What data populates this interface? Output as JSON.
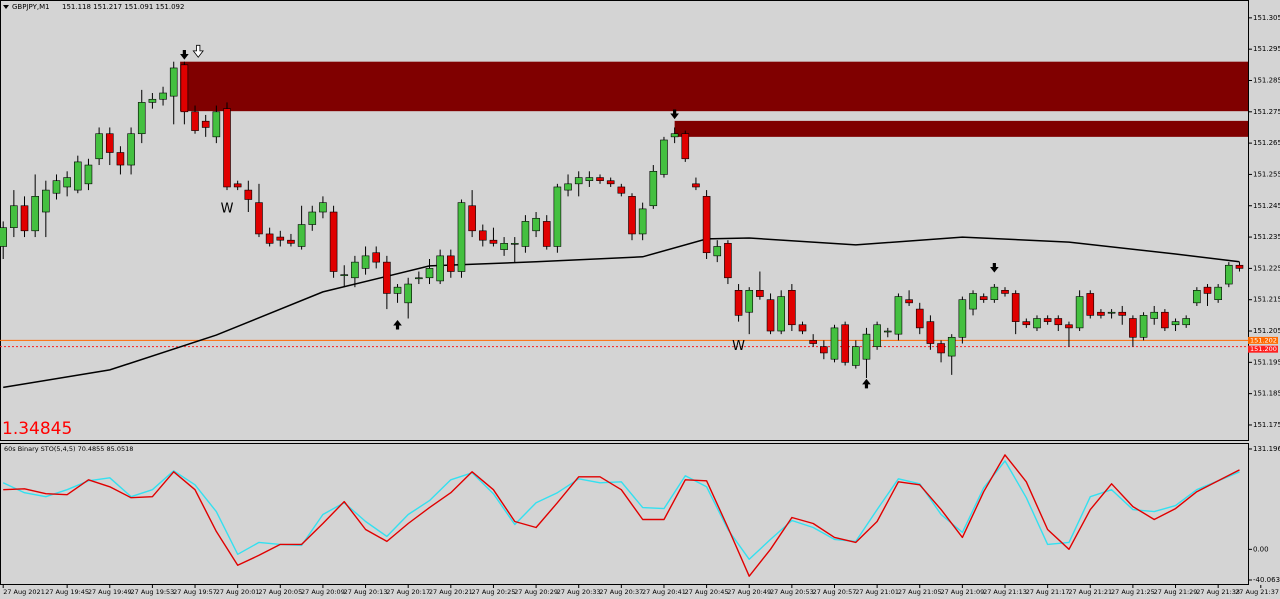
{
  "chart_data": [
    {
      "type": "candlestick",
      "title": "GBPJPY,M1",
      "subtitle": "151.118 151.217 151.091 151.092",
      "info_text": "1.34845",
      "up_color": "#44c040",
      "down_color": "#e00000",
      "ma_color": "#000000",
      "zone_color": "#800000",
      "x": [
        0,
        1,
        2,
        3,
        4,
        5,
        6,
        7,
        8,
        9,
        10,
        11,
        12,
        13,
        14,
        15,
        16,
        17,
        18,
        19,
        20,
        21,
        22,
        23,
        24,
        25,
        26,
        27,
        28,
        29,
        30,
        31,
        32,
        33,
        34,
        35,
        36,
        37,
        38,
        39,
        40,
        41,
        42,
        43,
        44,
        45,
        46,
        47,
        48,
        49,
        50,
        51,
        52,
        53,
        54,
        55,
        56,
        57,
        58,
        59,
        60,
        61,
        62,
        63,
        64,
        65,
        66,
        67,
        68,
        69,
        70,
        71,
        72,
        73,
        74,
        75,
        76,
        77,
        78,
        79,
        80,
        81,
        82,
        83,
        84,
        85,
        86,
        87,
        88,
        89,
        90,
        91,
        92,
        93,
        94,
        95,
        96,
        97,
        98,
        99,
        100,
        101,
        102,
        103,
        104,
        105,
        106,
        107,
        108,
        109,
        110,
        111,
        112,
        113,
        114,
        115,
        116
      ],
      "open": [
        151.232,
        151.238,
        151.245,
        151.237,
        151.243,
        151.249,
        151.251,
        151.25,
        151.252,
        151.26,
        151.268,
        151.262,
        151.258,
        151.268,
        151.278,
        151.279,
        151.28,
        151.29,
        151.275,
        151.272,
        151.267,
        151.276,
        151.252,
        151.25,
        151.246,
        151.236,
        151.235,
        151.234,
        151.232,
        151.239,
        151.243,
        151.243,
        151.223,
        151.222,
        151.225,
        151.23,
        151.227,
        151.217,
        151.214,
        151.222,
        151.222,
        151.221,
        151.229,
        151.224,
        151.245,
        151.237,
        151.234,
        151.231,
        151.233,
        151.232,
        151.237,
        151.24,
        151.232,
        151.25,
        151.252,
        151.253,
        151.254,
        151.253,
        151.251,
        151.248,
        151.236,
        151.245,
        151.255,
        151.267,
        151.268,
        151.252,
        151.248,
        151.229,
        151.233,
        151.218,
        151.211,
        151.218,
        151.215,
        151.205,
        151.218,
        151.207,
        151.202,
        151.2,
        151.196,
        151.207,
        151.194,
        151.196,
        151.2,
        151.205,
        151.204,
        151.215,
        151.212,
        151.208,
        151.201,
        151.197,
        151.203,
        151.212,
        151.216,
        151.215,
        151.218,
        151.217,
        151.208,
        151.206,
        151.209,
        151.209,
        151.207,
        151.206,
        151.217,
        151.211,
        151.211,
        151.211,
        151.209,
        151.203,
        151.209,
        151.211,
        151.207,
        151.207,
        151.214,
        151.219,
        151.215,
        151.22,
        151.226
      ],
      "high": [
        151.24,
        151.25,
        151.248,
        151.255,
        151.253,
        151.255,
        151.256,
        151.261,
        151.26,
        151.27,
        151.27,
        151.264,
        151.27,
        151.282,
        151.281,
        151.283,
        151.291,
        151.291,
        151.277,
        151.274,
        151.277,
        151.278,
        151.253,
        151.253,
        151.252,
        151.238,
        151.237,
        151.236,
        151.245,
        151.245,
        151.248,
        151.245,
        151.226,
        151.229,
        151.232,
        151.232,
        151.229,
        151.22,
        151.222,
        151.224,
        151.228,
        151.231,
        151.231,
        151.247,
        151.25,
        151.239,
        151.238,
        151.235,
        151.235,
        151.242,
        151.243,
        151.242,
        151.252,
        151.255,
        151.256,
        151.256,
        151.255,
        151.254,
        151.252,
        151.249,
        151.246,
        151.258,
        151.267,
        151.27,
        151.269,
        151.254,
        151.25,
        151.234,
        151.234,
        151.22,
        151.219,
        151.224,
        151.217,
        151.218,
        151.22,
        151.208,
        151.204,
        151.202,
        151.207,
        151.208,
        151.202,
        151.206,
        151.208,
        151.206,
        151.217,
        151.218,
        151.214,
        151.21,
        151.202,
        151.204,
        151.216,
        151.218,
        151.217,
        151.22,
        151.219,
        151.218,
        151.209,
        151.21,
        151.21,
        151.21,
        151.208,
        151.218,
        151.218,
        151.212,
        151.212,
        151.213,
        151.21,
        151.211,
        151.213,
        151.212,
        151.209,
        151.21,
        151.219,
        151.22,
        151.22,
        151.227,
        151.227
      ],
      "low": [
        151.228,
        151.235,
        151.235,
        151.235,
        151.235,
        151.247,
        151.248,
        151.249,
        151.25,
        151.258,
        151.258,
        151.255,
        151.255,
        151.265,
        151.276,
        151.277,
        151.271,
        151.271,
        151.268,
        151.267,
        151.265,
        151.25,
        151.25,
        151.243,
        151.235,
        151.232,
        151.232,
        151.232,
        151.231,
        151.237,
        151.241,
        151.222,
        151.219,
        151.219,
        151.223,
        151.225,
        151.212,
        151.214,
        151.209,
        151.22,
        151.22,
        151.22,
        151.222,
        151.222,
        151.235,
        151.232,
        151.232,
        151.229,
        151.227,
        151.23,
        151.235,
        151.231,
        151.23,
        151.248,
        151.248,
        151.251,
        151.252,
        151.251,
        151.248,
        151.234,
        151.234,
        151.244,
        151.254,
        151.265,
        151.259,
        151.25,
        151.228,
        151.227,
        151.22,
        151.208,
        151.204,
        151.215,
        151.204,
        151.204,
        151.205,
        151.204,
        151.2,
        151.196,
        151.195,
        151.194,
        151.193,
        151.19,
        151.199,
        151.203,
        151.202,
        151.213,
        151.204,
        151.199,
        151.195,
        151.191,
        151.201,
        151.21,
        151.214,
        151.214,
        151.216,
        151.204,
        151.206,
        151.205,
        151.207,
        151.205,
        151.2,
        151.205,
        151.209,
        151.209,
        151.209,
        151.207,
        151.2,
        151.202,
        151.207,
        151.205,
        151.205,
        151.206,
        151.213,
        151.213,
        151.214,
        151.219,
        151.224
      ],
      "close": [
        151.238,
        151.245,
        151.237,
        151.248,
        151.25,
        151.253,
        151.254,
        151.259,
        151.258,
        151.268,
        151.262,
        151.258,
        151.268,
        151.278,
        151.279,
        151.281,
        151.289,
        151.275,
        151.269,
        151.27,
        151.275,
        151.251,
        151.251,
        151.247,
        151.236,
        151.233,
        151.234,
        151.233,
        151.239,
        151.243,
        151.246,
        151.224,
        151.223,
        151.227,
        151.229,
        151.227,
        151.217,
        151.219,
        151.22,
        151.222,
        151.225,
        151.229,
        151.224,
        151.246,
        151.237,
        151.234,
        151.233,
        151.233,
        151.233,
        151.24,
        151.241,
        151.232,
        151.251,
        151.252,
        151.254,
        151.254,
        151.253,
        151.252,
        151.249,
        151.236,
        151.244,
        151.256,
        151.266,
        151.268,
        151.26,
        151.251,
        151.23,
        151.232,
        151.222,
        151.21,
        151.218,
        151.216,
        151.205,
        151.216,
        151.207,
        151.205,
        151.201,
        151.198,
        151.206,
        151.195,
        151.2,
        151.204,
        151.207,
        151.205,
        151.216,
        151.214,
        151.206,
        151.201,
        151.198,
        151.203,
        151.215,
        151.217,
        151.215,
        151.219,
        151.217,
        151.208,
        151.207,
        151.209,
        151.208,
        151.207,
        151.206,
        151.216,
        151.21,
        151.21,
        151.211,
        151.21,
        151.203,
        151.21,
        151.211,
        151.206,
        151.208,
        151.209,
        151.218,
        151.217,
        151.219,
        151.226,
        151.225
      ],
      "ma": {
        "x": [
          0,
          10,
          20,
          30,
          40,
          50,
          60,
          66,
          70,
          80,
          90,
          100,
          110,
          116
        ],
        "values": [
          151.187,
          151.1926,
          151.2037,
          151.2175,
          151.2258,
          151.2271,
          151.2287,
          151.2344,
          151.2347,
          151.2325,
          151.235,
          151.2334,
          151.2296,
          151.2271
        ]
      },
      "zones": [
        {
          "x_start": 16.6,
          "top": 151.291,
          "bottom": 151.2752
        },
        {
          "x_start": 63.0,
          "top": 151.2721,
          "bottom": 151.267
        }
      ],
      "hlines": [
        {
          "value": 151.202,
          "label": "151.202",
          "color": "#ff6a00",
          "style": "solid"
        },
        {
          "value": 151.2,
          "label": "151.200",
          "color": "#ff2020",
          "style": "dotted"
        }
      ],
      "signals": [
        {
          "x": 17,
          "y": 151.293,
          "direction": "down",
          "style": "solid"
        },
        {
          "x": 18.3,
          "y": 151.294,
          "direction": "down",
          "style": "hollow"
        },
        {
          "x": 63,
          "y": 151.274,
          "direction": "down",
          "style": "solid"
        },
        {
          "x": 93,
          "y": 151.225,
          "direction": "down",
          "style": "solid"
        },
        {
          "x": 37,
          "y": 151.2072,
          "direction": "up",
          "style": "solid"
        },
        {
          "x": 81,
          "y": 151.1884,
          "direction": "up",
          "style": "solid"
        }
      ],
      "annotations": [
        {
          "text": "W",
          "x": 21,
          "y": 151.244
        },
        {
          "text": "W",
          "x": 69,
          "y": 151.2
        }
      ],
      "xlim": [
        -0.3,
        116.8
      ],
      "ylim": [
        151.1702,
        151.3107
      ],
      "yticks": [
        151.305,
        151.295,
        151.285,
        151.275,
        151.265,
        151.255,
        151.245,
        151.235,
        151.225,
        151.215,
        151.205,
        151.195,
        151.185,
        151.175
      ],
      "xticks": [
        {
          "value": 0,
          "label": "27 Aug 2021"
        },
        {
          "value": 6,
          "label": "27 Aug 19:45"
        },
        {
          "value": 10,
          "label": "27 Aug 19:49"
        },
        {
          "value": 14,
          "label": "27 Aug 19:53"
        },
        {
          "value": 18,
          "label": "27 Aug 19:57"
        },
        {
          "value": 22,
          "label": "27 Aug 20:01"
        },
        {
          "value": 26,
          "label": "27 Aug 20:05"
        },
        {
          "value": 30,
          "label": "27 Aug 20:09"
        },
        {
          "value": 34,
          "label": "27 Aug 20:13"
        },
        {
          "value": 38,
          "label": "27 Aug 20:17"
        },
        {
          "value": 42,
          "label": "27 Aug 20:21"
        },
        {
          "value": 46,
          "label": "27 Aug 20:25"
        },
        {
          "value": 50,
          "label": "27 Aug 20:29"
        },
        {
          "value": 54,
          "label": "27 Aug 20:33"
        },
        {
          "value": 58,
          "label": "27 Aug 20:37"
        },
        {
          "value": 62,
          "label": "27 Aug 20:41"
        },
        {
          "value": 66,
          "label": "27 Aug 20:45"
        },
        {
          "value": 70,
          "label": "27 Aug 20:49"
        },
        {
          "value": 74,
          "label": "27 Aug 20:53"
        },
        {
          "value": 78,
          "label": "27 Aug 20:57"
        },
        {
          "value": 82,
          "label": "27 Aug 21:01"
        },
        {
          "value": 86,
          "label": "27 Aug 21:05"
        },
        {
          "value": 90,
          "label": "27 Aug 21:09"
        },
        {
          "value": 94,
          "label": "27 Aug 21:13"
        },
        {
          "value": 98,
          "label": "27 Aug 21:17"
        },
        {
          "value": 102,
          "label": "27 Aug 21:21"
        },
        {
          "value": 106,
          "label": "27 Aug 21:25"
        },
        {
          "value": 110,
          "label": "27 Aug 21:29"
        },
        {
          "value": 114,
          "label": "27 Aug 21:33"
        },
        {
          "value": 118,
          "label": "27 Aug 21:37"
        }
      ]
    },
    {
      "type": "line",
      "title": "60s Binary STO(5,4,5) 70.4855 85.0518",
      "x": [
        0,
        2,
        4,
        6,
        8,
        10,
        12,
        14,
        16,
        18,
        20,
        22,
        24,
        26,
        28,
        30,
        32,
        34,
        36,
        38,
        40,
        42,
        44,
        46,
        48,
        50,
        52,
        54,
        56,
        58,
        60,
        62,
        64,
        66,
        68,
        70,
        72,
        74,
        76,
        78,
        80,
        82,
        84,
        86,
        88,
        90,
        92,
        94,
        96,
        98,
        100,
        102,
        104,
        106,
        108,
        110,
        112,
        114,
        116
      ],
      "series": [
        {
          "color": "#33e0f0",
          "values": [
            87,
            74,
            68.8,
            77.9,
            89.6,
            93.5,
            68.8,
            77.9,
            102.6,
            84.4,
            49.4,
            -6.5,
            9.1,
            6.5,
            5.2,
            45.5,
            61,
            36.4,
            16.9,
            45.5,
            63.7,
            90.9,
            100,
            72.7,
            32.5,
            61,
            74,
            92.2,
            87,
            88.3,
            54.6,
            53.3,
            96.1,
            81.8,
            26,
            -13,
            13,
            37.7,
            28.6,
            13,
            10.4,
            52,
            92.2,
            85.7,
            45.5,
            22.1,
            80.5,
            115.6,
            67.5,
            6.5,
            9.1,
            68.8,
            77.9,
            52,
            49.4,
            57.2,
            77.9,
            89.6,
            101.3
          ]
        },
        {
          "color": "#e00000",
          "values": [
            77.9,
            79.2,
            72.7,
            71.4,
            90.9,
            81.8,
            67.5,
            68.8,
            101.3,
            77.9,
            23.4,
            -20.8,
            -7.8,
            6.5,
            6.5,
            33.8,
            62.4,
            26,
            10.4,
            33.8,
            54.6,
            74,
            101.3,
            77.9,
            36.4,
            28.6,
            61,
            94.8,
            94.8,
            77.9,
            39,
            39,
            90.9,
            89.6,
            28.6,
            -35.1,
            0,
            41.6,
            33.8,
            15.6,
            9.1,
            36.4,
            88.3,
            84.4,
            52,
            15.6,
            75.3,
            123.4,
            88.3,
            26,
            0,
            52,
            85.7,
            55.9,
            39,
            53.3,
            75.3,
            89.6,
            103.9
          ]
        }
      ],
      "xlim": [
        -0.3,
        116.8
      ],
      "ylim": [
        -46.6,
        139
      ],
      "yticks": [
        131.1967,
        {
          "value": 0,
          "label": "0.00"
        },
        -40.0634
      ]
    }
  ]
}
